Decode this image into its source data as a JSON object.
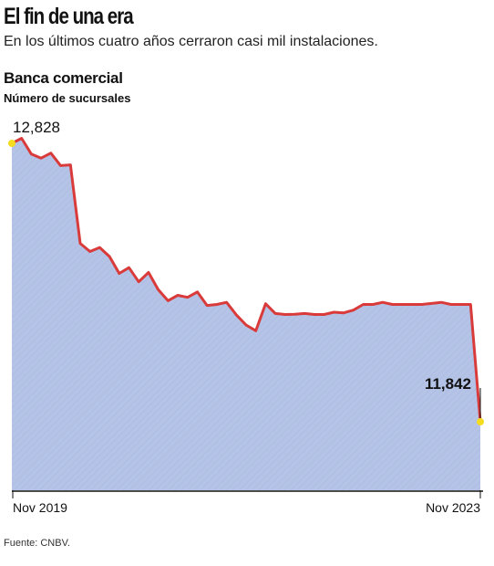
{
  "header": {
    "headline": "El fin de una era",
    "deck": "En los últimos cuatro años cerraron casi mil instalaciones."
  },
  "source": "Fuente: CNBV.",
  "colors": {
    "line": "#d93a3a",
    "area": "#b4c3e6",
    "marker": "#f5dc1e",
    "axis": "#111111"
  },
  "chart_data": {
    "type": "area",
    "title": "Banca comercial",
    "subtitle": "Número de sucursales",
    "x_tick_labels": [
      "Nov 2019",
      "Nov 2023"
    ],
    "x_range": [
      "Nov 2019",
      "Nov 2023"
    ],
    "grid": false,
    "legend": "none",
    "annotations": [
      {
        "label": "12,828",
        "point": "first"
      },
      {
        "label": "11,842",
        "point": "last"
      }
    ],
    "x": [
      "2019-11",
      "2019-12",
      "2020-01",
      "2020-02",
      "2020-03",
      "2020-04",
      "2020-05",
      "2020-06",
      "2020-07",
      "2020-08",
      "2020-09",
      "2020-10",
      "2020-11",
      "2020-12",
      "2021-01",
      "2021-02",
      "2021-03",
      "2021-04",
      "2021-05",
      "2021-06",
      "2021-07",
      "2021-08",
      "2021-09",
      "2021-10",
      "2021-11",
      "2021-12",
      "2022-01",
      "2022-02",
      "2022-03",
      "2022-04",
      "2022-05",
      "2022-06",
      "2022-07",
      "2022-08",
      "2022-09",
      "2022-10",
      "2022-11",
      "2022-12",
      "2023-01",
      "2023-02",
      "2023-03",
      "2023-04",
      "2023-05",
      "2023-06",
      "2023-07",
      "2023-08",
      "2023-09",
      "2023-10",
      "2023-11"
    ],
    "values": [
      12828,
      12843,
      12796,
      12784,
      12799,
      12762,
      12764,
      12531,
      12507,
      12519,
      12492,
      12442,
      12459,
      12417,
      12445,
      12394,
      12361,
      12377,
      12371,
      12387,
      12347,
      12350,
      12356,
      12319,
      12289,
      12272,
      12352,
      12323,
      12320,
      12321,
      12323,
      12320,
      12320,
      12327,
      12325,
      12333,
      12350,
      12350,
      12356,
      12350,
      12350,
      12350,
      12350,
      12353,
      12356,
      12350,
      12350,
      12350,
      11842
    ]
  }
}
